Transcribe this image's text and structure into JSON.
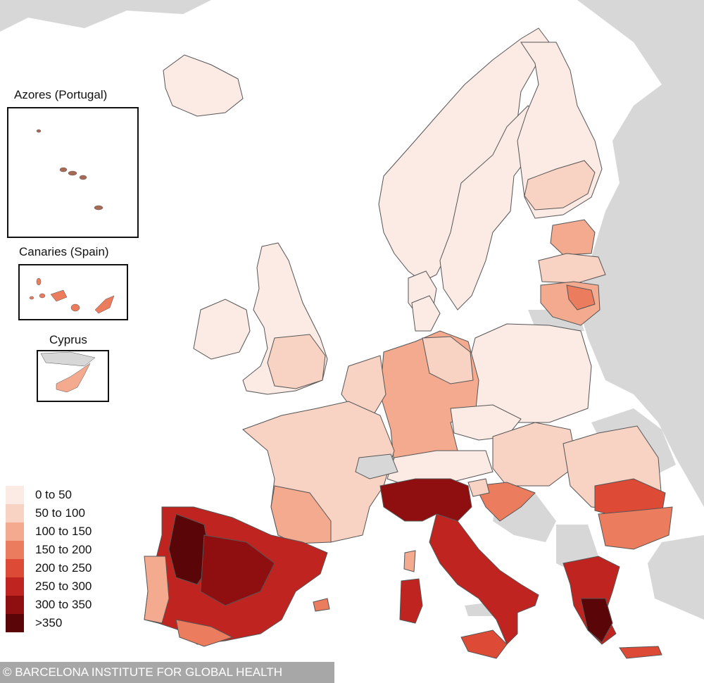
{
  "insets": [
    {
      "title": "Azores (Portugal)",
      "name": "azores"
    },
    {
      "title": "Canaries (Spain)",
      "name": "canaries"
    },
    {
      "title": "Cyprus",
      "name": "cyprus"
    }
  ],
  "legend": [
    {
      "label": "0 to 50",
      "color": "#fcebe4"
    },
    {
      "label": "50 to 100",
      "color": "#f8d2c2"
    },
    {
      "label": "100 to 150",
      "color": "#f3aa8f"
    },
    {
      "label": "150 to 200",
      "color": "#ec7c5e"
    },
    {
      "label": "200 to 250",
      "color": "#dd4a36"
    },
    {
      "label": "250 to 300",
      "color": "#c02420"
    },
    {
      "label": "300 to 350",
      "color": "#8f0f10"
    },
    {
      "label": ">350",
      "color": "#5a0508"
    }
  ],
  "colors": {
    "water": "#ffffff",
    "non_eu_land": "#d7d7d7",
    "border": "#555555"
  },
  "credit": "© BARCELONA INSTITUTE FOR GLOBAL HEALTH"
}
